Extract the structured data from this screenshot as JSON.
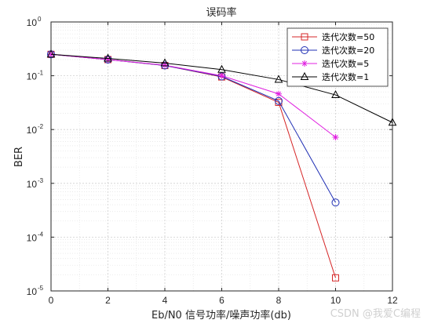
{
  "chart_data": {
    "type": "line",
    "title": "误码率",
    "xlabel": "Eb/N0 信号功率/噪声功率(db)",
    "ylabel": "BER",
    "xlim": [
      0,
      12
    ],
    "ylim_exp": [
      -5,
      0
    ],
    "y_scale": "log",
    "grid": true,
    "minor_grid": true,
    "legend_position": "top-right",
    "x_ticks": [
      0,
      2,
      4,
      6,
      8,
      10,
      12
    ],
    "y_ticks": [
      {
        "base": "10",
        "exp": "0"
      },
      {
        "base": "10",
        "exp": "-1"
      },
      {
        "base": "10",
        "exp": "-2"
      },
      {
        "base": "10",
        "exp": "-3"
      },
      {
        "base": "10",
        "exp": "-4"
      },
      {
        "base": "10",
        "exp": "-5"
      }
    ],
    "series": [
      {
        "name": "迭代次数=50",
        "color": "#d62728",
        "marker": "square",
        "x": [
          0,
          2,
          4,
          6,
          8,
          10
        ],
        "y": [
          0.25,
          0.2,
          0.155,
          0.095,
          0.032,
          1.75e-05
        ]
      },
      {
        "name": "迭代次数=20",
        "color": "#1f2fb4",
        "marker": "circle",
        "x": [
          0,
          2,
          4,
          6,
          8,
          10
        ],
        "y": [
          0.25,
          0.2,
          0.155,
          0.097,
          0.034,
          0.00044
        ]
      },
      {
        "name": "迭代次数=5",
        "color": "#e020e0",
        "marker": "star",
        "x": [
          0,
          2,
          4,
          6,
          8,
          10
        ],
        "y": [
          0.25,
          0.2,
          0.157,
          0.1,
          0.046,
          0.0072
        ]
      },
      {
        "name": "迭代次数=1",
        "color": "#000000",
        "marker": "triangle",
        "x": [
          0,
          2,
          4,
          6,
          8,
          10,
          12
        ],
        "y": [
          0.25,
          0.21,
          0.172,
          0.13,
          0.085,
          0.044,
          0.0135
        ]
      }
    ]
  },
  "watermark": "CSDN @我爱C编程"
}
